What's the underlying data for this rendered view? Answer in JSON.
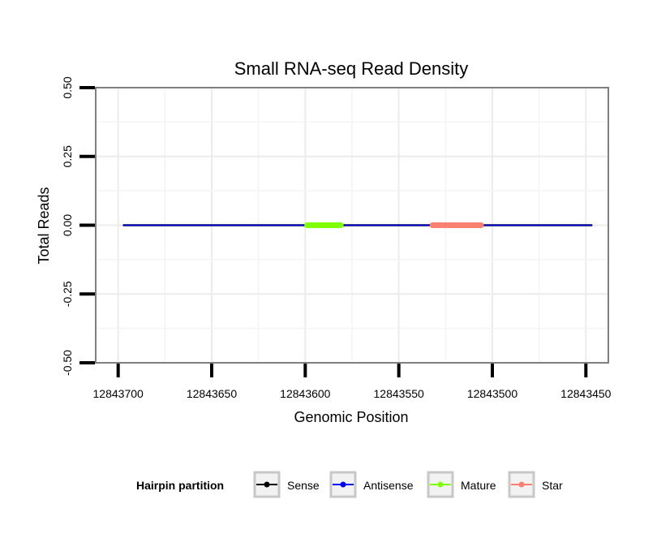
{
  "chart_data": {
    "type": "line",
    "title": "Small RNA-seq Read Density",
    "xlabel": "Genomic Position",
    "ylabel": "Total Reads",
    "xlim": [
      12843712,
      12843438
    ],
    "x_reversed": true,
    "ylim": [
      -0.5,
      0.5
    ],
    "x_ticks": [
      12843700,
      12843650,
      12843600,
      12843550,
      12843500,
      12843450
    ],
    "x_tick_labels": [
      "12843700",
      "12843650",
      "12843600",
      "12843550",
      "12843500",
      "12843450"
    ],
    "y_ticks": [
      0.5,
      0.25,
      0.0,
      -0.25,
      -0.5
    ],
    "y_tick_labels": [
      "0.50",
      "0.25",
      "0.00",
      "-0.25",
      "-0.50"
    ],
    "grid": true,
    "series": [
      {
        "name": "Sense",
        "color": "#000000",
        "x": [
          12843697,
          12843447
        ],
        "y": [
          0,
          0
        ]
      },
      {
        "name": "Antisense",
        "color": "#0000FF",
        "x": [
          12843697,
          12843447
        ],
        "y": [
          0,
          0
        ]
      },
      {
        "name": "Mature",
        "color": "#7FFF00",
        "x": [
          12843599,
          12843581
        ],
        "y": [
          0,
          0
        ]
      },
      {
        "name": "Star",
        "color": "#FA8072",
        "x": [
          12843532,
          12843506
        ],
        "y": [
          0,
          0
        ]
      }
    ],
    "legend": {
      "title": "Hairpin partition",
      "position": "bottom",
      "entries": [
        "Sense",
        "Antisense",
        "Mature",
        "Star"
      ]
    }
  }
}
